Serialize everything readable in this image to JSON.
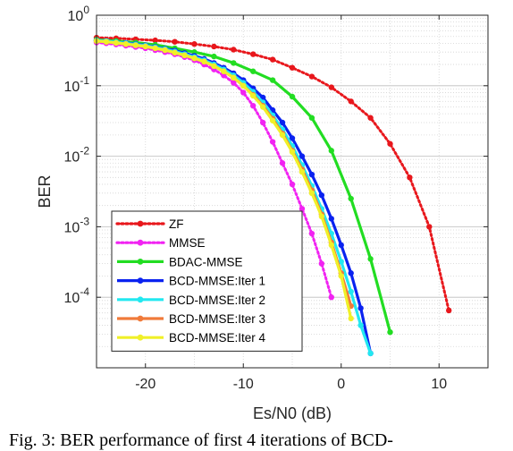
{
  "chart_data": {
    "type": "line",
    "xlabel": "Es/N0 (dB)",
    "ylabel": "BER",
    "xlim": [
      -25,
      15
    ],
    "ylim": [
      1e-05,
      1
    ],
    "yscale": "log",
    "x_ticks": [
      "-20",
      "-10",
      "0",
      "10"
    ],
    "x_tick_values": [
      -20,
      -10,
      0,
      10
    ],
    "y_ticks": [
      {
        "base": "10",
        "exp": "0",
        "value": 1
      },
      {
        "base": "10",
        "exp": "-1",
        "value": 0.1
      },
      {
        "base": "10",
        "exp": "-2",
        "value": 0.01
      },
      {
        "base": "10",
        "exp": "-3",
        "value": 0.001
      },
      {
        "base": "10",
        "exp": "-4",
        "value": 0.0001
      }
    ],
    "grid": true,
    "legend_position": "bottom-left",
    "series": [
      {
        "name": "ZF",
        "color": "#e8171c",
        "style": "dotted",
        "x": [
          -25,
          -23,
          -21,
          -19,
          -17,
          -15,
          -13,
          -11,
          -9,
          -7,
          -5,
          -3,
          -1,
          1,
          3,
          5,
          7,
          9,
          11
        ],
        "y": [
          0.48,
          0.47,
          0.455,
          0.44,
          0.42,
          0.39,
          0.36,
          0.325,
          0.28,
          0.235,
          0.18,
          0.135,
          0.095,
          0.06,
          0.035,
          0.015,
          0.005,
          0.001,
          6.5e-05
        ]
      },
      {
        "name": "MMSE",
        "color": "#f123f2",
        "style": "dotted",
        "x": [
          -25,
          -24,
          -23,
          -22,
          -21,
          -20,
          -19,
          -18,
          -17,
          -16,
          -15,
          -14,
          -13,
          -12,
          -11,
          -10,
          -9,
          -8,
          -7,
          -6,
          -5,
          -4,
          -3,
          -2,
          -1
        ],
        "y": [
          0.41,
          0.4,
          0.385,
          0.37,
          0.355,
          0.34,
          0.32,
          0.3,
          0.28,
          0.255,
          0.23,
          0.2,
          0.17,
          0.14,
          0.11,
          0.08,
          0.052,
          0.03,
          0.016,
          0.008,
          0.004,
          0.0018,
          0.0008,
          0.0003,
          0.0001
        ]
      },
      {
        "name": "BDAC-MMSE",
        "color": "#22dd22",
        "style": "solid",
        "x": [
          -25,
          -23,
          -21,
          -19,
          -17,
          -15,
          -13,
          -11,
          -9,
          -7,
          -5,
          -3,
          -1,
          1,
          3,
          5
        ],
        "y": [
          0.45,
          0.43,
          0.41,
          0.38,
          0.34,
          0.3,
          0.26,
          0.21,
          0.16,
          0.12,
          0.07,
          0.035,
          0.012,
          0.0025,
          0.00035,
          3.2e-05
        ]
      },
      {
        "name": "BCD-MMSE:Iter 1",
        "color": "#0a22f0",
        "style": "solid",
        "x": [
          -25,
          -24,
          -23,
          -22,
          -21,
          -20,
          -19,
          -18,
          -17,
          -16,
          -15,
          -14,
          -13,
          -12,
          -11,
          -10,
          -9,
          -8,
          -7,
          -6,
          -5,
          -4,
          -3,
          -2,
          -1,
          0,
          1,
          2,
          3
        ],
        "y": [
          0.44,
          0.43,
          0.415,
          0.405,
          0.39,
          0.375,
          0.355,
          0.335,
          0.315,
          0.29,
          0.265,
          0.24,
          0.21,
          0.18,
          0.15,
          0.12,
          0.092,
          0.068,
          0.045,
          0.03,
          0.018,
          0.01,
          0.0055,
          0.0028,
          0.0013,
          0.00055,
          0.00022,
          7e-05,
          1.6e-05
        ]
      },
      {
        "name": "BCD-MMSE:Iter 2",
        "color": "#22e8f0",
        "style": "solid",
        "x": [
          -25,
          -24,
          -23,
          -22,
          -21,
          -20,
          -19,
          -18,
          -17,
          -16,
          -15,
          -14,
          -13,
          -12,
          -11,
          -10,
          -9,
          -8,
          -7,
          -6,
          -5,
          -4,
          -3,
          -2,
          -1,
          0,
          1,
          2,
          3
        ],
        "y": [
          0.44,
          0.43,
          0.415,
          0.4,
          0.385,
          0.37,
          0.35,
          0.33,
          0.305,
          0.28,
          0.255,
          0.23,
          0.2,
          0.17,
          0.14,
          0.11,
          0.082,
          0.058,
          0.038,
          0.024,
          0.014,
          0.0075,
          0.0038,
          0.0018,
          0.0008,
          0.00032,
          0.00012,
          4e-05,
          1.6e-05
        ]
      },
      {
        "name": "BCD-MMSE:Iter 3",
        "color": "#f07a3a",
        "style": "solid",
        "x": [
          -25,
          -24,
          -23,
          -22,
          -21,
          -20,
          -19,
          -18,
          -17,
          -16,
          -15,
          -14,
          -13,
          -12,
          -11,
          -10,
          -9,
          -8,
          -7,
          -6,
          -5,
          -4,
          -3,
          -2,
          -1,
          0,
          1
        ],
        "y": [
          0.43,
          0.42,
          0.405,
          0.39,
          0.375,
          0.36,
          0.34,
          0.32,
          0.295,
          0.27,
          0.245,
          0.22,
          0.19,
          0.16,
          0.13,
          0.1,
          0.074,
          0.052,
          0.034,
          0.021,
          0.012,
          0.0065,
          0.0033,
          0.0015,
          0.0006,
          0.00022,
          7.5e-05
        ]
      },
      {
        "name": "BCD-MMSE:Iter 4",
        "color": "#f0f028",
        "style": "solid",
        "x": [
          -25,
          -24,
          -23,
          -22,
          -21,
          -20,
          -19,
          -18,
          -17,
          -16,
          -15,
          -14,
          -13,
          -12,
          -11,
          -10,
          -9,
          -8,
          -7,
          -6,
          -5,
          -4,
          -3,
          -2,
          -1,
          0,
          1
        ],
        "y": [
          0.43,
          0.42,
          0.405,
          0.39,
          0.375,
          0.36,
          0.34,
          0.32,
          0.295,
          0.27,
          0.245,
          0.22,
          0.19,
          0.16,
          0.13,
          0.1,
          0.072,
          0.05,
          0.032,
          0.02,
          0.0115,
          0.006,
          0.003,
          0.0014,
          0.00055,
          0.0002,
          5e-05
        ]
      }
    ]
  },
  "caption": "Fig. 3: BER performance of first 4 iterations of BCD-"
}
